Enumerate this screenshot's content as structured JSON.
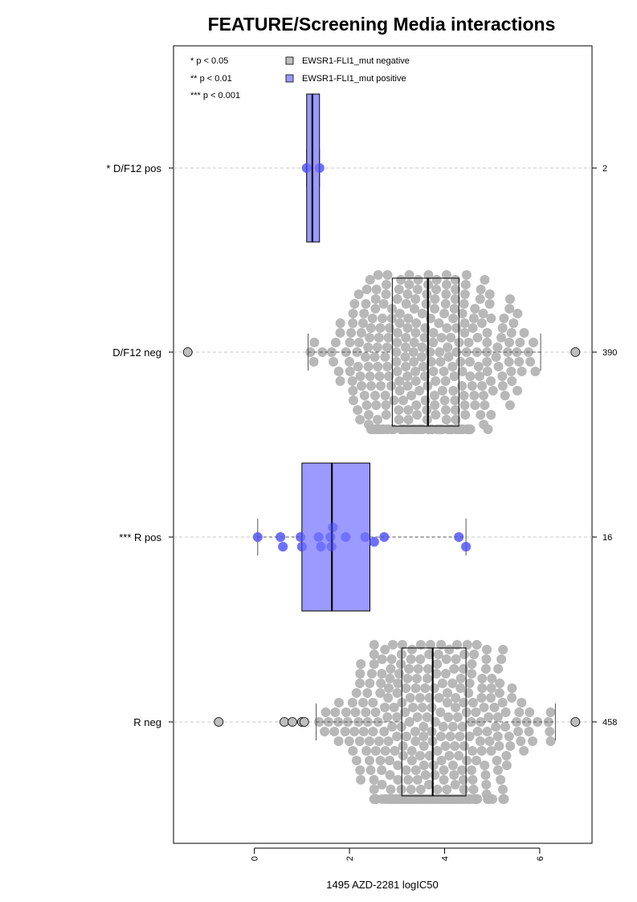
{
  "chart_data": {
    "type": "box",
    "title": "FEATURE/Screening Media interactions",
    "xlabel": "1495 AZD-2281 logIC50",
    "xlim": [
      -1.7,
      7.1
    ],
    "x_ticks": [
      0,
      2,
      4,
      6
    ],
    "x_tick_labels": [
      "0",
      "2",
      "4",
      "6"
    ],
    "significance_legend": [
      "* p < 0.05",
      "** p < 0.01",
      "*** p < 0.001"
    ],
    "legend": [
      {
        "name": "EWSR1-FLI1_mut negative",
        "color": "#bebebe"
      },
      {
        "name": "EWSR1-FLI1_mut positive",
        "color": "#9a9aff"
      }
    ],
    "groups": [
      {
        "label": "* D/F12 pos",
        "count": "2",
        "color": "#9a9aff",
        "q1": 1.1,
        "median": 1.22,
        "q3": 1.37,
        "whisker_low": 1.1,
        "whisker_high": 1.37,
        "outliers": [],
        "points": [
          1.1,
          1.37
        ]
      },
      {
        "label": "D/F12 neg",
        "count": "390",
        "color": "#bebebe",
        "q1": 2.9,
        "median": 3.65,
        "q3": 4.3,
        "whisker_low": 1.13,
        "whisker_high": 6.02,
        "outliers": [
          -1.4,
          6.75
        ]
      },
      {
        "label": "*** R pos",
        "count": "16",
        "color": "#9a9aff",
        "q1": 1.0,
        "median": 1.63,
        "q3": 2.43,
        "whisker_low": 0.07,
        "whisker_high": 4.45,
        "outliers": [],
        "points": [
          0.07,
          0.55,
          0.6,
          0.97,
          1.0,
          1.35,
          1.4,
          1.6,
          1.62,
          1.65,
          1.92,
          2.33,
          2.52,
          2.73,
          4.3,
          4.45
        ]
      },
      {
        "label": "R neg",
        "count": "458",
        "color": "#bebebe",
        "q1": 3.1,
        "median": 3.75,
        "q3": 4.45,
        "whisker_low": 1.3,
        "whisker_high": 6.33,
        "outliers": [
          -0.75,
          0.63,
          0.8,
          1.0,
          1.05,
          6.75
        ]
      }
    ]
  }
}
